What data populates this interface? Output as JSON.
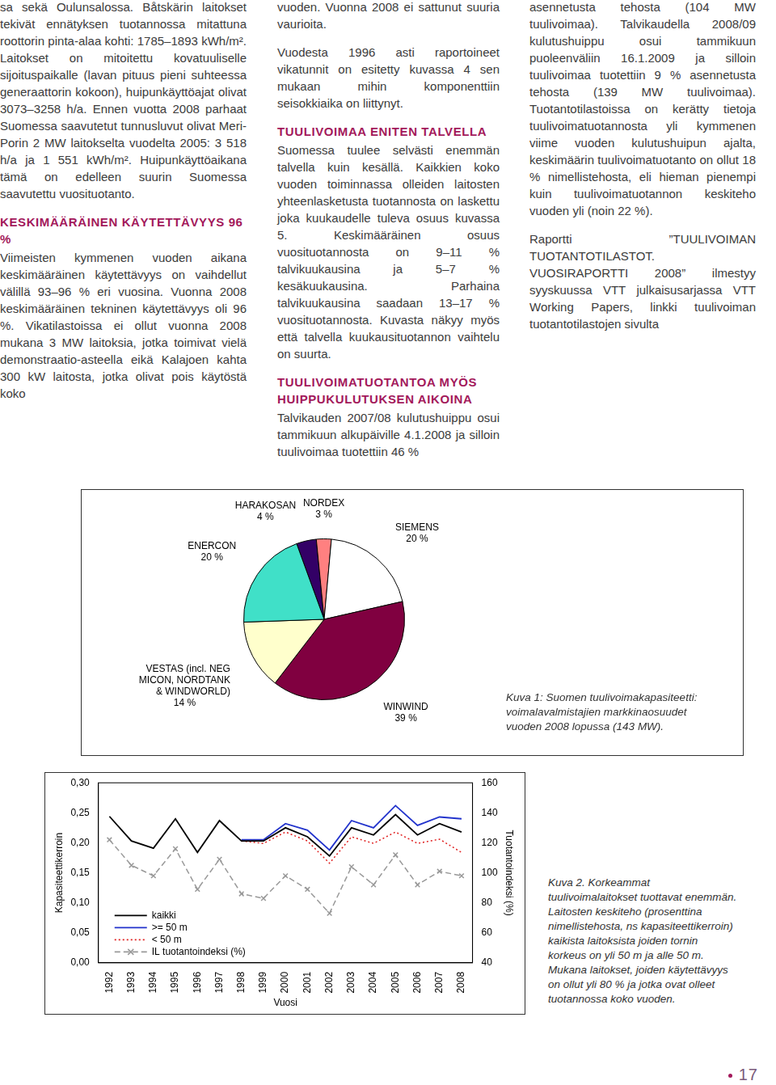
{
  "columns": [
    [
      {
        "paragraph": "sa sekä Oulunsalossa. Båtskärin laitokset tekivät ennätyksen tuotannossa mitattuna roottorin pinta-alaa kohti: 1785–1893 kWh/m². Laitokset on mitoitettu kovatuuliselle sijoituspaikalle (lavan pituus pieni suhteessa generaattorin kokoon), huipunkäyttöajat olivat 3073–3258 h/a. Ennen vuotta 2008 parhaat Suomessa saavutetut tunnusluvut olivat Meri-Porin 2 MW laitokselta vuodelta 2005: 3 518 h/a ja 1 551 kWh/m². Huipunkäyttöaikana tämä on edelleen suurin Suomessa saavutettu vuosituotanto."
      },
      {
        "heading": "KESKIMÄÄRÄINEN KÄYTETTÄVYYS 96 %"
      },
      {
        "paragraph": "Viimeisten kymmenen vuoden aikana keskimääräinen käytettävyys on vaihdellut välillä 93–96 % eri vuosina. Vuonna 2008 keskimääräinen tekninen käytettävyys oli 96 %. Vikatilastoissa ei ollut vuonna 2008 mukana 3 MW laitoksia, jotka toimivat vielä demonstraatio-asteella eikä Kalajoen kahta 300 kW laitosta, jotka olivat pois käytöstä koko"
      }
    ],
    [
      {
        "paragraph": "vuoden. Vuonna 2008 ei sattunut suuria vaurioita."
      },
      {
        "paragraph": "Vuodesta 1996 asti raportoineet vikatunnit on esitetty kuvassa 4 sen mukaan mihin komponenttiin seisokkiaika on liittynyt."
      },
      {
        "heading": "TUULIVOIMAA ENITEN TALVELLA"
      },
      {
        "paragraph": "Suomessa tuulee selvästi enemmän talvella kuin kesällä. Kaikkien koko vuoden toiminnassa olleiden laitosten yhteenlasketusta tuotannosta on laskettu joka kuukaudelle tuleva osuus kuvassa 5. Keskimääräinen osuus vuosituotannosta on 9–11 % talvikuukausina ja 5–7 % kesäkuukausina. Parhaina talvikuukausina saadaan 13–17 % vuosituotannosta. Kuvasta näkyy myös että talvella kuukausituotannon vaihtelu on suurta."
      },
      {
        "heading": "TUULIVOIMATUOTANTOA MYÖS HUIPPUKULUTUKSEN AIKOINA"
      },
      {
        "paragraph": "Talvikauden 2007/08 kulutushuippu osui tammikuun alkupäiville 4.1.2008 ja silloin tuulivoimaa tuotettiin 46 %"
      }
    ],
    [
      {
        "paragraph": "asennetusta tehosta (104 MW tuulivoimaa). Talvikaudella 2008/09 kulutushuippu osui tammikuun puoleenväliin 16.1.2009 ja silloin tuulivoimaa tuotettiin 9 % asennetusta tehosta (139 MW tuulivoimaa). Tuotantotilastoissa on kerätty tietoja tuulivoimatuotannosta yli kymmenen viime vuoden kulutushuipun ajalta, keskimäärin tuulivoimatuotanto on ollut 18 % nimellistehosta, eli hieman pienempi kuin tuulivoimatuotannon keskiteho vuoden yli (noin 22 %)."
      },
      {
        "paragraph": "Raportti ”TUULIVOIMAN TUOTANTOTILASTOT. VUOSIRAPORTTI 2008” ilmestyy syyskuussa VTT julkaisusarjassa VTT Working Papers, linkki tuulivoiman tuotantotilastojen sivulta"
      }
    ]
  ],
  "chart_data": [
    {
      "type": "pie",
      "categories": [
        "HARAKOSAN",
        "NORDEX",
        "SIEMENS",
        "WINWIND",
        "VESTAS (incl. NEG MICON, NORDTANK & WINDWORLD)",
        "ENERCON"
      ],
      "values": [
        4,
        3,
        20,
        39,
        14,
        20
      ],
      "value_labels": [
        "4 %",
        "3 %",
        "20 %",
        "39 %",
        "14 %",
        "20 %"
      ],
      "colors": [
        "#330066",
        "#ff8080",
        "#ffffff",
        "#800040",
        "#ffffcc",
        "#40e0c8"
      ],
      "data_labels": true
    },
    {
      "type": "line",
      "x_label": "Vuosi",
      "y_label": "Kapasiteettikerroin",
      "y2_label": "Tuotantoindeksi (%)",
      "categories": [
        "1992",
        "1993",
        "1994",
        "1995",
        "1996",
        "1997",
        "1998",
        "1999",
        "2000",
        "2001",
        "2002",
        "2003",
        "2004",
        "2005",
        "2006",
        "2007",
        "2008"
      ],
      "ylim": [
        0,
        0.3
      ],
      "yticks": [
        {
          "value": 0,
          "label": "0,00"
        },
        {
          "value": 0.05,
          "label": "0,05"
        },
        {
          "value": 0.1,
          "label": "0,10"
        },
        {
          "value": 0.15,
          "label": "0,15"
        },
        {
          "value": 0.2,
          "label": "0,20"
        },
        {
          "value": 0.25,
          "label": "0,25"
        },
        {
          "value": 0.3,
          "label": "0,30"
        }
      ],
      "y2lim": [
        40,
        160
      ],
      "y2ticks": [
        40,
        60,
        80,
        100,
        120,
        140,
        160
      ],
      "grid": false,
      "legend": "lower left",
      "series": [
        {
          "name": "kaikki",
          "color": "#000000",
          "line_style": "solid",
          "marker": "none",
          "values": [
            0.244,
            0.203,
            0.191,
            0.24,
            0.184,
            0.237,
            0.203,
            0.203,
            0.225,
            0.21,
            0.178,
            0.225,
            0.213,
            0.247,
            0.213,
            0.232,
            0.218
          ]
        },
        {
          "name": ">= 50 m",
          "color": "#2233cc",
          "line_style": "solid",
          "marker": "none",
          "values": [
            null,
            null,
            null,
            null,
            null,
            null,
            0.205,
            0.205,
            0.232,
            0.221,
            0.188,
            0.237,
            0.225,
            0.262,
            0.229,
            0.243,
            0.24
          ]
        },
        {
          "name": "< 50 m",
          "color": "#e02020",
          "line_style": "dotted",
          "marker": "none",
          "values": [
            null,
            null,
            null,
            null,
            null,
            null,
            0.203,
            0.199,
            0.218,
            0.203,
            0.166,
            0.21,
            0.199,
            0.218,
            0.199,
            0.206,
            0.184
          ]
        },
        {
          "name": "IL tuotantoindeksi (%)",
          "color": "#999999",
          "line_style": "dashed",
          "marker": "x",
          "axis": "y2",
          "values": [
            122,
            105,
            98,
            116,
            89,
            109,
            86,
            83,
            98,
            89,
            73,
            104,
            92,
            112,
            92,
            101,
            98
          ]
        }
      ]
    }
  ],
  "captions": [
    "Kuva 1: Suomen tuulivoimakapasiteetti: voimalavalmistajien markkinaosuudet vuoden 2008 lopussa (143 MW).",
    "Kuva 2. Korkeammat tuulivoimalaitokset tuottavat enemmän. Laitosten keskiteho (prosenttina nimellistehosta, ns kapasiteettikerroin) kaikista laitoksista joiden tornin korkeus on yli 50 m ja alle 50 m. Mukana laitokset, joiden käytettävyys on ollut yli 80 % ja jotka ovat olleet tuotannossa koko vuoden."
  ],
  "page_number": 17
}
